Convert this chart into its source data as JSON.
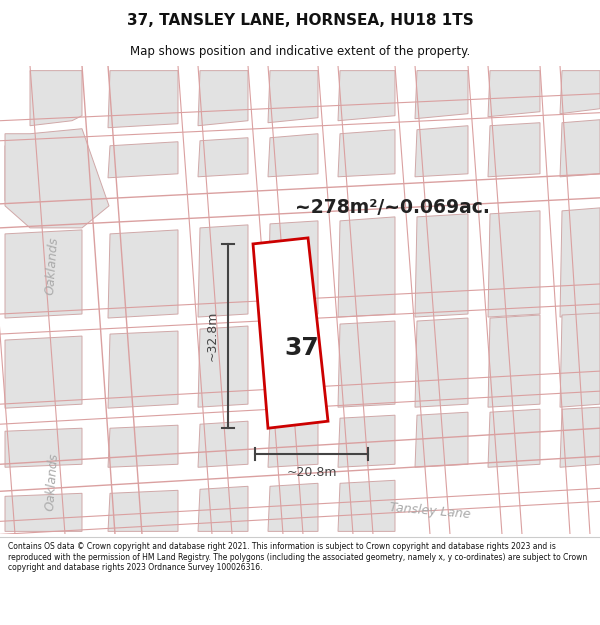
{
  "title": "37, TANSLEY LANE, HORNSEA, HU18 1TS",
  "subtitle": "Map shows position and indicative extent of the property.",
  "area_label": "~278m²/~0.069ac.",
  "plot_number": "37",
  "dim_height": "~32.8m",
  "dim_width": "~20.8m",
  "road_label_oaklands_top": "Oaklands",
  "road_label_oaklands_bot": "Oaklands",
  "road_label_tansley": "Tansley Lane",
  "footer": "Contains OS data © Crown copyright and database right 2021. This information is subject to Crown copyright and database rights 2023 and is reproduced with the permission of HM Land Registry. The polygons (including the associated geometry, namely x, y co-ordinates) are subject to Crown copyright and database rights 2023 Ordnance Survey 100026316.",
  "map_bg": "#f2f0f0",
  "block_fill": "#e2e2e2",
  "block_edge": "#d0a8a8",
  "road_line": "#daa0a0",
  "plot_edge": "#cc0000",
  "plot_fill": "#ffffff",
  "dim_color": "#444444",
  "label_color": "#aaaaaa",
  "text_dark": "#222222"
}
